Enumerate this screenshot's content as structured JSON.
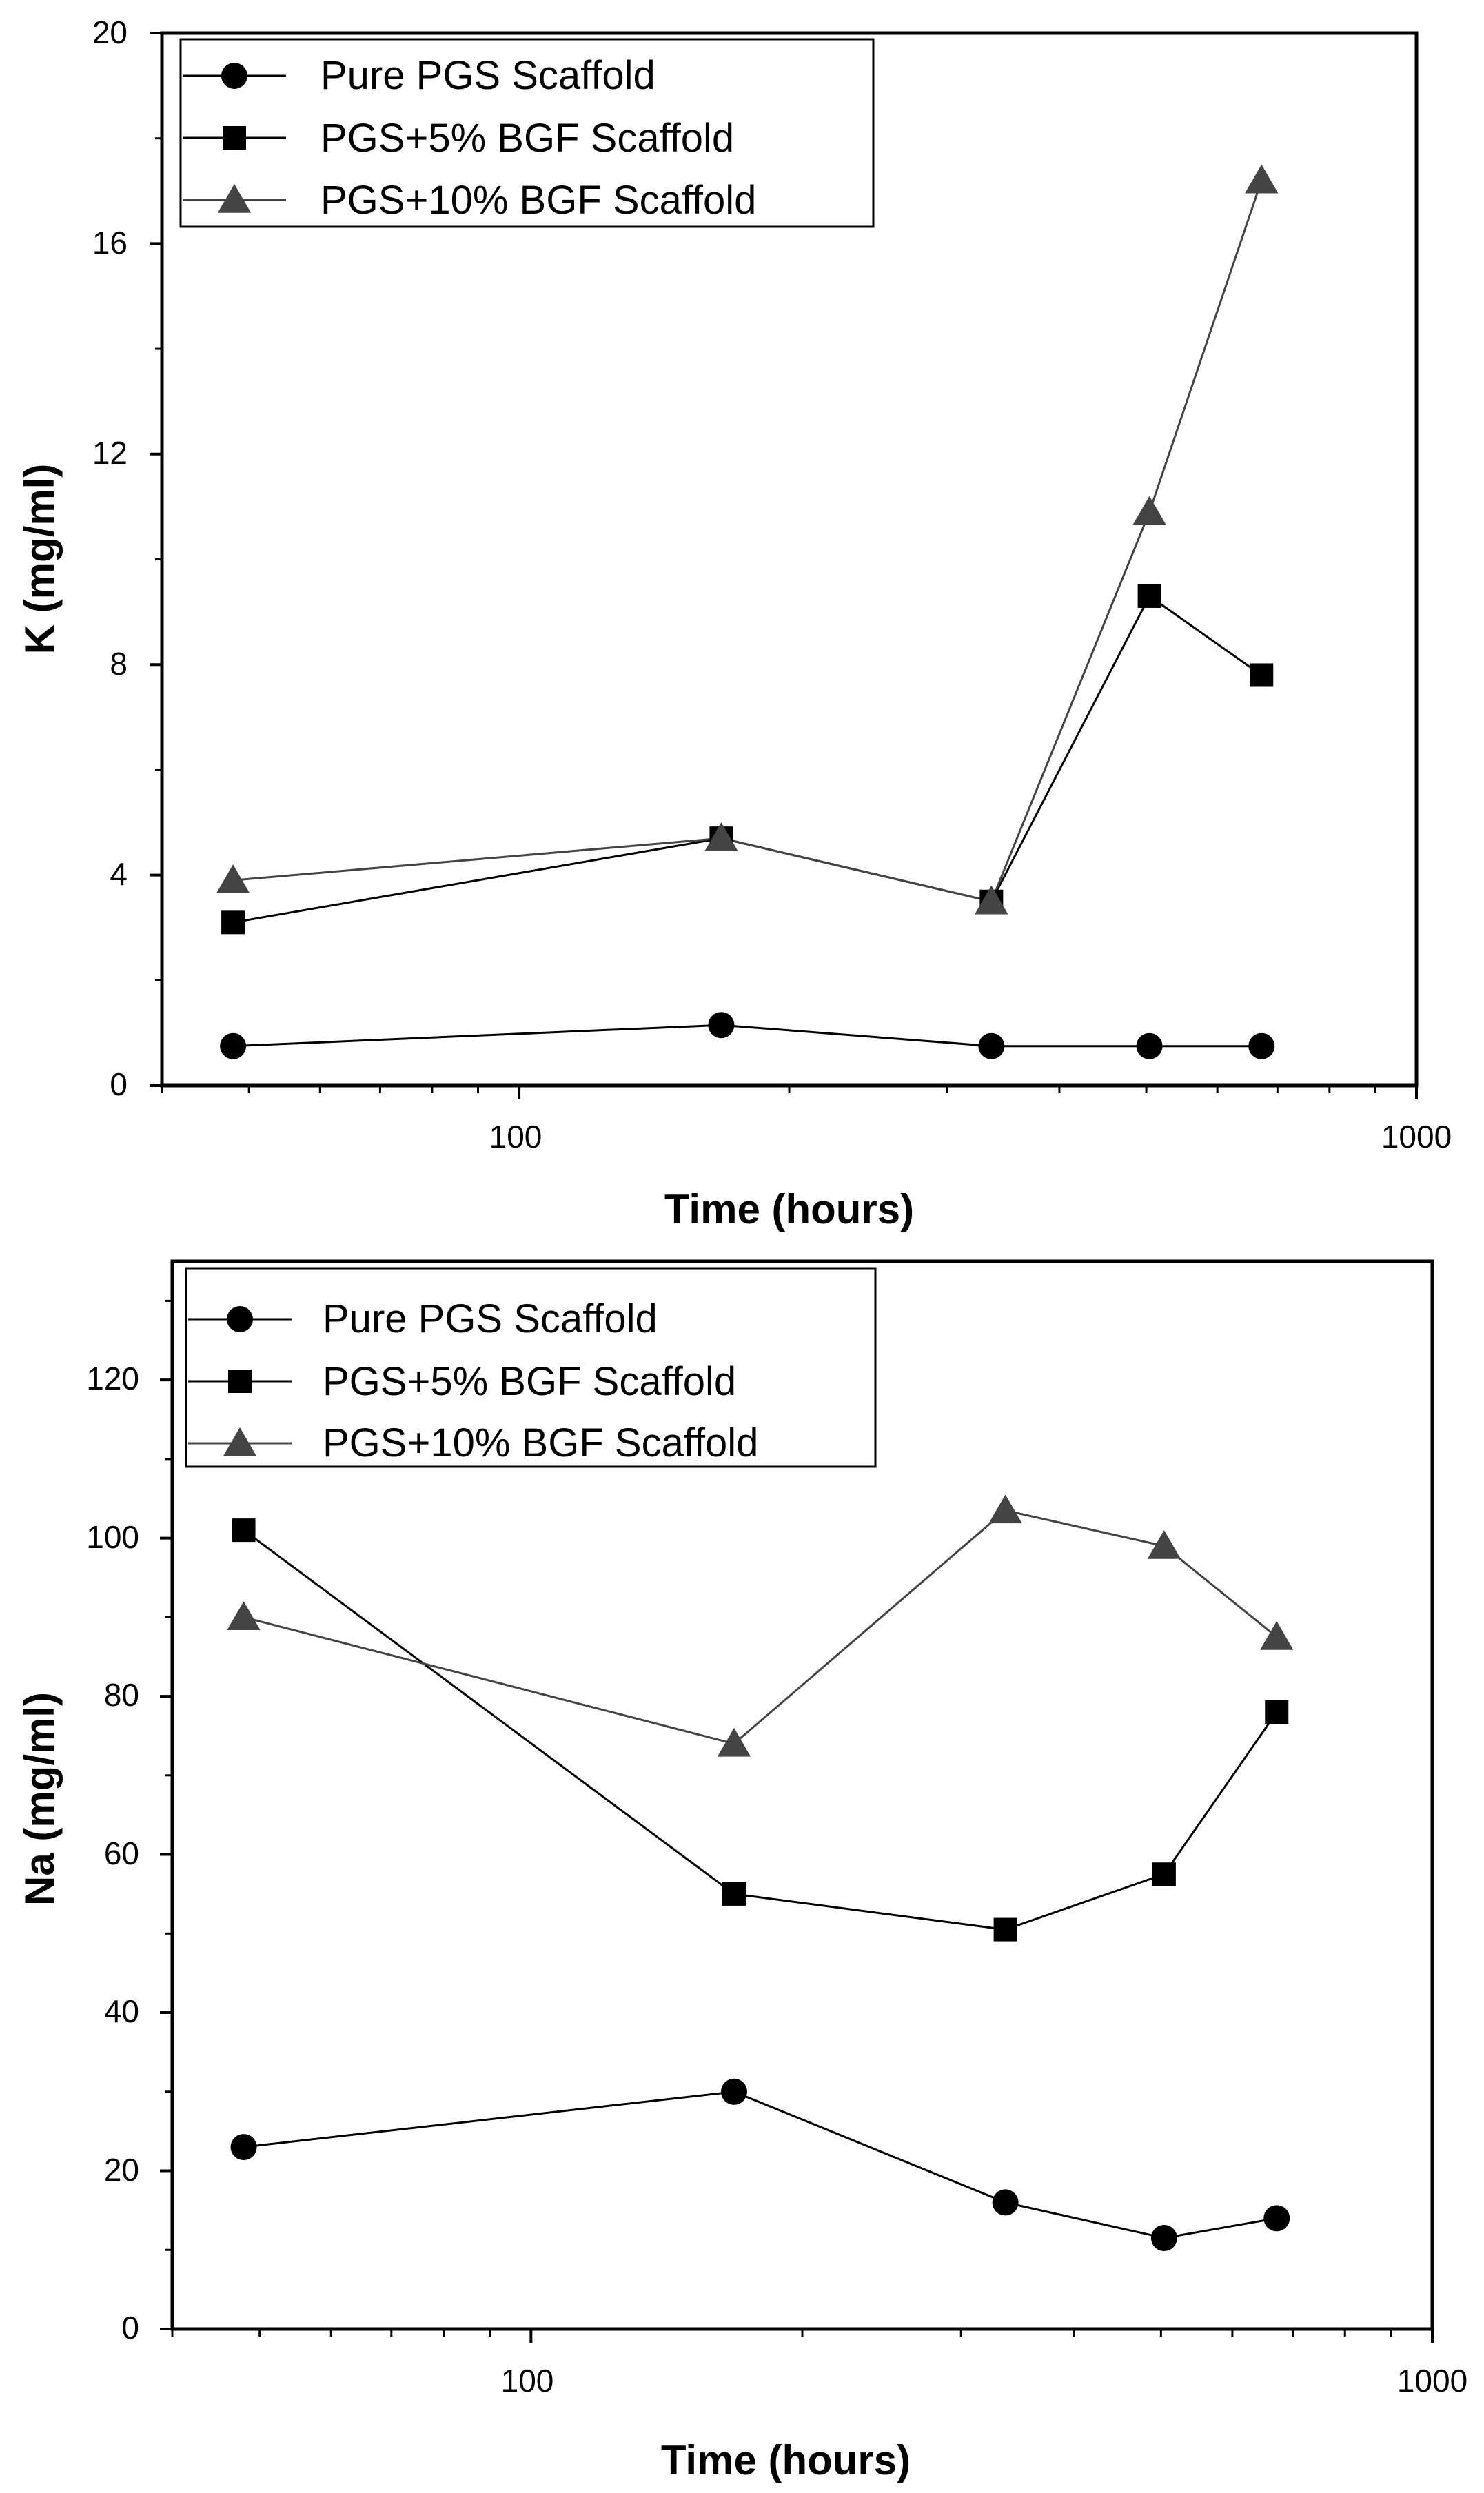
{
  "chart_data": [
    {
      "type": "line",
      "xscale": "log",
      "xlabel": "Time (hours)",
      "ylabel": "K (mg/ml)",
      "xlim": [
        40,
        1000
      ],
      "ylim": [
        0,
        20
      ],
      "x_ticks": [
        100,
        1000
      ],
      "x_tick_labels": [
        "100",
        "1000"
      ],
      "y_ticks": [
        0,
        4,
        8,
        12,
        16,
        20
      ],
      "y_tick_labels": [
        "0",
        "4",
        "8",
        "12",
        "16",
        "20"
      ],
      "grid": false,
      "legend_position": "top-left",
      "series": [
        {
          "name": "Pure PGS Scaffold",
          "marker": "circle",
          "color": "#000000",
          "x": [
            48,
            168,
            336,
            504,
            672
          ],
          "y": [
            0.75,
            1.15,
            0.75,
            0.75,
            0.75
          ]
        },
        {
          "name": "PGS+5% BGF Scaffold",
          "marker": "square",
          "color": "#000000",
          "x": [
            48,
            168,
            336,
            504,
            672
          ],
          "y": [
            3.1,
            4.7,
            3.5,
            9.3,
            7.8
          ]
        },
        {
          "name": "PGS+10% BGF Scaffold",
          "marker": "triangle",
          "color": "#444444",
          "x": [
            48,
            168,
            336,
            504,
            672
          ],
          "y": [
            3.9,
            4.7,
            3.5,
            10.9,
            17.2
          ]
        }
      ]
    },
    {
      "type": "line",
      "xscale": "log",
      "xlabel": "Time (hours)",
      "ylabel": "Na (mg/ml)",
      "xlim": [
        40,
        1000
      ],
      "ylim": [
        0,
        135
      ],
      "x_ticks": [
        100,
        1000
      ],
      "x_tick_labels": [
        "100",
        "1000"
      ],
      "y_ticks": [
        0,
        20,
        40,
        60,
        80,
        100,
        120
      ],
      "y_tick_labels": [
        "0",
        "20",
        "40",
        "60",
        "80",
        "100",
        "120"
      ],
      "grid": false,
      "legend_position": "top-left",
      "series": [
        {
          "name": "Pure PGS Scaffold",
          "marker": "circle",
          "color": "#000000",
          "x": [
            48,
            168,
            336,
            504,
            672
          ],
          "y": [
            23,
            30,
            16,
            11.5,
            14
          ]
        },
        {
          "name": "PGS+5% BGF Scaffold",
          "marker": "square",
          "color": "#000000",
          "x": [
            48,
            168,
            336,
            504,
            672
          ],
          "y": [
            101,
            55,
            50.5,
            57.5,
            78
          ]
        },
        {
          "name": "PGS+10% BGF Scaffold",
          "marker": "triangle",
          "color": "#444444",
          "x": [
            48,
            168,
            336,
            504,
            672
          ],
          "y": [
            90,
            74,
            103.5,
            99,
            87.5
          ]
        }
      ]
    }
  ]
}
